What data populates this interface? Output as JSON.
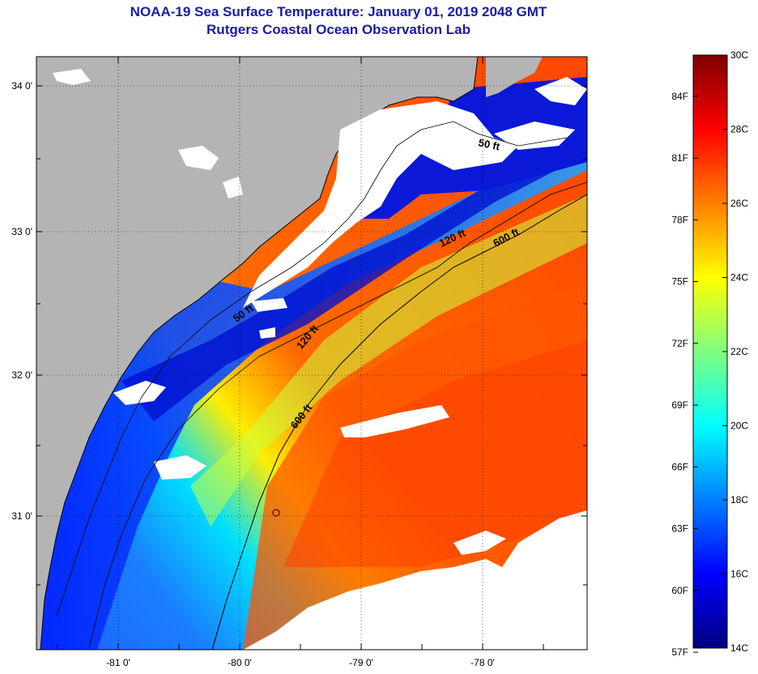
{
  "title": "NOAA-19 Sea Surface Temperature:  January 01, 2019 2048 GMT",
  "subtitle": "Rutgers Coastal Ocean Observation Lab",
  "map": {
    "lon_ticks": [
      "-81 0'",
      "-80 0'",
      "-79 0'",
      "-78 0'"
    ],
    "lat_ticks": [
      "34 0'",
      "33 0'",
      "32 0'",
      "31 0'"
    ],
    "isobaths": [
      {
        "label": "50 ft",
        "id": "50a"
      },
      {
        "label": "50 ft",
        "id": "50b"
      },
      {
        "label": "120 ft",
        "id": "120a"
      },
      {
        "label": "120 ft",
        "id": "120b"
      },
      {
        "label": "600 ft",
        "id": "600a"
      },
      {
        "label": "600 ft",
        "id": "600b"
      }
    ],
    "colors": {
      "land": "#b4b4b4",
      "cloud": "#ffffff",
      "contour": "#000000"
    }
  },
  "colorbar": {
    "fahrenheit": [
      "57F",
      "60F",
      "63F",
      "66F",
      "69F",
      "72F",
      "75F",
      "78F",
      "81F",
      "84F"
    ],
    "celsius": [
      "14C",
      "16C",
      "18C",
      "20C",
      "22C",
      "24C",
      "26C",
      "28C",
      "30C"
    ],
    "gradient": [
      "#00007f",
      "#0000ff",
      "#007fff",
      "#00ffff",
      "#7fff7f",
      "#ffff00",
      "#ff7f00",
      "#ff0000",
      "#7f0000"
    ]
  }
}
